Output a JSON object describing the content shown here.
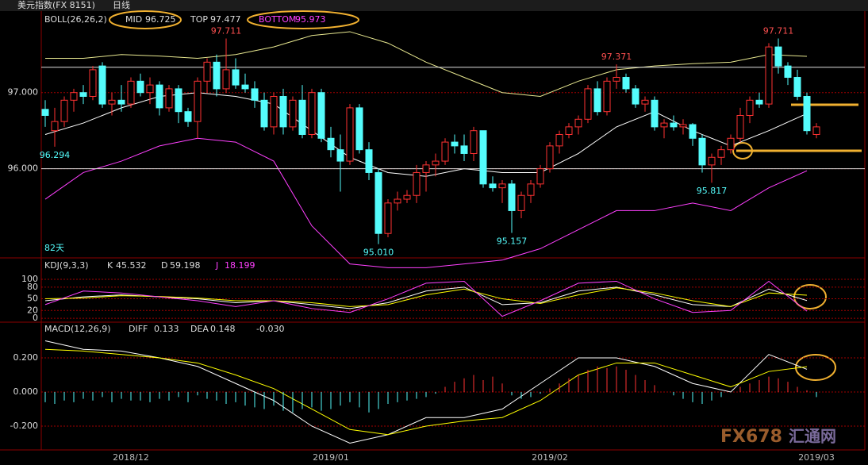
{
  "header": {
    "title": "美元指数(FX 8151)",
    "period": "日线",
    "span": "82天",
    "watermark": "FX678",
    "watermark_cn": "汇通网"
  },
  "chart_data": [
    {
      "type": "candlestick",
      "name": "BOLL(26,26,2)",
      "categories": [
        null,
        null,
        null,
        null,
        null,
        null,
        null,
        null,
        null,
        "2018/12",
        null,
        null,
        null,
        null,
        null,
        null,
        null,
        null,
        null,
        null,
        null,
        null,
        null,
        null,
        null,
        null,
        null,
        null,
        null,
        null,
        "2019/01",
        null,
        null,
        null,
        null,
        null,
        null,
        null,
        null,
        null,
        null,
        null,
        null,
        null,
        null,
        null,
        null,
        null,
        null,
        null,
        null,
        null,
        null,
        "2019/02",
        null,
        null,
        null,
        null,
        null,
        null,
        null,
        null,
        null,
        null,
        null,
        null,
        null,
        null,
        null,
        null,
        null,
        null,
        null,
        null,
        null,
        null,
        null,
        null,
        null,
        null,
        null,
        "2019/03"
      ],
      "open": [
        96.78,
        96.5,
        96.62,
        96.9,
        97,
        96.95,
        97.35,
        96.85,
        96.9,
        96.85,
        97.15,
        97,
        97.1,
        96.8,
        97.05,
        96.75,
        96.62,
        97.15,
        97.4,
        97.05,
        97.3,
        97.1,
        97.05,
        96.9,
        96.55,
        96.95,
        96.55,
        96.9,
        96.45,
        97,
        96.4,
        96.25,
        96.1,
        96.8,
        96.25,
        95.95,
        95.15,
        95.55,
        95.6,
        95.65,
        95.95,
        96.05,
        96.1,
        96.35,
        96.3,
        96.2,
        96.5,
        95.8,
        95.75,
        95.8,
        95.45,
        95.65,
        95.8,
        96,
        96.3,
        96.45,
        96.55,
        96.65,
        97.05,
        96.75,
        97.15,
        97.2,
        97.05,
        96.85,
        96.9,
        96.55,
        96.6,
        96.55,
        96.58,
        96.4,
        96.05,
        96.15,
        96.25,
        96.4,
        96.7,
        96.9,
        96.85,
        97.6,
        97.35,
        97.2,
        96.95,
        96.45
      ],
      "high": [
        96.9,
        96.8,
        96.95,
        97.05,
        97.1,
        97.35,
        97.4,
        97,
        97.1,
        97.2,
        97.25,
        97.2,
        97.15,
        97.1,
        97.1,
        96.8,
        97.2,
        97.45,
        97.5,
        97.711,
        97.45,
        97.25,
        97.15,
        97,
        97,
        97.05,
        96.95,
        97.1,
        97.05,
        97.05,
        96.55,
        96.45,
        96.85,
        96.85,
        96.35,
        96,
        95.6,
        95.7,
        95.72,
        96.05,
        96.1,
        96.2,
        96.4,
        96.45,
        96.45,
        96.55,
        96.5,
        95.9,
        95.85,
        95.85,
        95.7,
        95.85,
        96.05,
        96.35,
        96.5,
        96.6,
        96.7,
        97.1,
        97.15,
        97.2,
        97.371,
        97.25,
        97.1,
        96.95,
        96.95,
        96.65,
        96.7,
        96.65,
        96.6,
        96.45,
        96.2,
        96.3,
        96.45,
        96.8,
        96.95,
        97,
        97.65,
        97.711,
        97.4,
        97.3,
        97,
        96.6
      ],
      "low": [
        96.55,
        96.29,
        96.55,
        96.75,
        96.85,
        96.9,
        96.8,
        96.7,
        96.75,
        96.8,
        96.95,
        96.85,
        96.7,
        96.75,
        96.6,
        96.55,
        96.4,
        97,
        96.95,
        97,
        97.05,
        97,
        96.8,
        96.5,
        96.45,
        96.45,
        96.5,
        96.4,
        96.4,
        96.35,
        96.15,
        95.7,
        96.05,
        96.2,
        95.85,
        95.01,
        95.1,
        95.45,
        95.55,
        95.55,
        95.7,
        95.9,
        96.05,
        96.2,
        96.1,
        96.1,
        95.75,
        95.7,
        95.55,
        95.157,
        95.35,
        95.55,
        95.75,
        95.95,
        96.2,
        96.4,
        96.45,
        96.6,
        96.7,
        96.7,
        97.05,
        97,
        96.8,
        96.75,
        96.5,
        96.4,
        96.5,
        96.45,
        96.3,
        95.95,
        95.817,
        96.05,
        96.2,
        96.35,
        96.6,
        96.8,
        96.8,
        97.25,
        97.1,
        96.9,
        96.45,
        96.4
      ],
      "close": [
        96.7,
        96.62,
        96.9,
        97,
        96.95,
        97.3,
        96.85,
        96.9,
        96.85,
        97.15,
        97,
        97.1,
        96.8,
        97.05,
        96.75,
        96.62,
        97.15,
        97.4,
        97.05,
        97.3,
        97.1,
        97.05,
        96.9,
        96.55,
        96.95,
        96.55,
        96.9,
        96.45,
        97,
        96.4,
        96.25,
        96.1,
        96.8,
        96.25,
        95.95,
        95.15,
        95.55,
        95.6,
        95.65,
        95.95,
        96.05,
        96.1,
        96.35,
        96.3,
        96.2,
        96.5,
        95.8,
        95.75,
        95.8,
        95.45,
        95.65,
        95.8,
        96,
        96.3,
        96.45,
        96.55,
        96.65,
        97.05,
        96.75,
        97.15,
        97.2,
        97.05,
        96.85,
        96.9,
        96.55,
        96.6,
        96.55,
        96.58,
        96.4,
        96.05,
        96.15,
        96.25,
        96.4,
        96.7,
        96.9,
        96.85,
        97.6,
        97.35,
        97.2,
        96.95,
        96.5,
        96.55
      ],
      "up_color": "#ff3232",
      "down_color": "#54fcfc",
      "x": [
        0,
        4,
        8,
        12,
        16,
        20,
        24,
        28,
        32,
        36,
        40,
        44,
        48,
        52,
        56,
        60,
        64,
        68,
        72,
        76,
        80
      ],
      "series": [
        {
          "name": "MID",
          "color": "#ffffff",
          "values": [
            96.45,
            96.6,
            96.8,
            96.95,
            97,
            96.95,
            96.85,
            96.5,
            96.15,
            95.95,
            95.9,
            96,
            95.95,
            95.95,
            96.2,
            96.55,
            96.75,
            96.5,
            96.3,
            96.5,
            96.725
          ]
        },
        {
          "name": "TOP",
          "color": "#e8e890",
          "values": [
            97.45,
            97.45,
            97.5,
            97.48,
            97.45,
            97.5,
            97.6,
            97.75,
            97.8,
            97.65,
            97.4,
            97.2,
            97,
            96.95,
            97.15,
            97.3,
            97.35,
            97.38,
            97.4,
            97.5,
            97.477
          ]
        },
        {
          "name": "BOTTOM",
          "color": "#ff40ff",
          "values": [
            95.6,
            95.95,
            96.1,
            96.3,
            96.4,
            96.35,
            96.1,
            95.25,
            94.75,
            94.7,
            94.7,
            94.75,
            94.8,
            94.95,
            95.2,
            95.45,
            95.45,
            95.55,
            95.45,
            95.75,
            95.973
          ]
        }
      ],
      "annotations": [
        {
          "text": "97.711",
          "x": 19,
          "y": 97.711
        },
        {
          "text": "96.294",
          "x": 1,
          "y": 96.29
        },
        {
          "text": "95.010",
          "x": 35,
          "y": 95.01
        },
        {
          "text": "95.157",
          "x": 49,
          "y": 95.157
        },
        {
          "text": "97.371",
          "x": 60,
          "y": 97.371
        },
        {
          "text": "95.817",
          "x": 70,
          "y": 95.817
        },
        {
          "text": "97.711",
          "x": 77,
          "y": 97.711
        }
      ],
      "hlines": [
        97.333,
        96
      ],
      "ylim": [
        94.85,
        98.06
      ],
      "yticks": [
        {
          "value": 97,
          "label": "97.000"
        },
        {
          "value": 96,
          "label": "96.000"
        }
      ],
      "grid": true
    },
    {
      "type": "line",
      "name": "KDJ(9,3,3)",
      "x": [
        0,
        4,
        8,
        12,
        16,
        20,
        24,
        28,
        32,
        36,
        40,
        44,
        48,
        52,
        56,
        60,
        64,
        68,
        72,
        76,
        80
      ],
      "series": [
        {
          "name": "K",
          "color": "#ffffff",
          "values": [
            45,
            55,
            60,
            55,
            50,
            40,
            45,
            35,
            25,
            40,
            70,
            80,
            35,
            40,
            70,
            80,
            60,
            35,
            30,
            75,
            45.532
          ]
        },
        {
          "name": "D",
          "color": "#ffff00",
          "values": [
            50,
            52,
            58,
            56,
            52,
            45,
            45,
            40,
            30,
            35,
            60,
            75,
            50,
            38,
            60,
            78,
            65,
            45,
            30,
            65,
            59.198
          ]
        },
        {
          "name": "J",
          "color": "#ff40ff",
          "values": [
            35,
            70,
            65,
            55,
            45,
            30,
            45,
            25,
            15,
            50,
            90,
            95,
            5,
            45,
            90,
            95,
            50,
            15,
            20,
            95,
            18.199
          ]
        }
      ],
      "ylim": [
        -8,
        151
      ],
      "yticks": [
        100,
        80,
        50,
        20,
        0
      ],
      "grid": true
    },
    {
      "type": "macd",
      "name": "MACD(12,26,9)",
      "x": [
        0,
        4,
        8,
        12,
        16,
        20,
        24,
        28,
        32,
        36,
        40,
        44,
        48,
        52,
        56,
        60,
        64,
        68,
        72,
        76,
        80
      ],
      "series": [
        {
          "name": "DIFF",
          "color": "#ffffff",
          "values": [
            0.3,
            0.25,
            0.24,
            0.2,
            0.15,
            0.05,
            -0.05,
            -0.2,
            -0.3,
            -0.25,
            -0.15,
            -0.15,
            -0.1,
            0.05,
            0.2,
            0.2,
            0.15,
            0.05,
            0,
            0.22,
            0.133
          ]
        },
        {
          "name": "DEA",
          "color": "#ffff00",
          "values": [
            0.25,
            0.24,
            0.22,
            0.2,
            0.17,
            0.1,
            0.02,
            -0.1,
            -0.22,
            -0.25,
            -0.2,
            -0.17,
            -0.15,
            -0.05,
            0.1,
            0.17,
            0.17,
            0.1,
            0.03,
            0.12,
            0.148
          ]
        }
      ],
      "histogram": {
        "current": {
          "value": -0.03,
          "label": "-0.030"
        },
        "up_color": "#ff3232",
        "down_color": "#54fcfc",
        "values": [
          -0.06,
          -0.07,
          -0.05,
          -0.06,
          -0.04,
          -0.05,
          -0.03,
          -0.06,
          -0.04,
          -0.05,
          -0.05,
          -0.06,
          -0.04,
          -0.05,
          -0.03,
          -0.06,
          -0.02,
          -0.04,
          -0.05,
          -0.07,
          -0.06,
          -0.08,
          -0.09,
          -0.1,
          -0.08,
          -0.11,
          -0.12,
          -0.1,
          -0.09,
          -0.11,
          -0.1,
          -0.08,
          -0.06,
          -0.09,
          -0.12,
          -0.1,
          -0.07,
          -0.06,
          -0.05,
          -0.04,
          -0.03,
          -0.01,
          0.03,
          0.06,
          0.08,
          0.1,
          0.07,
          0.09,
          0.05,
          -0.02,
          -0.04,
          -0.03,
          -0.01,
          0.02,
          0.05,
          0.08,
          0.1,
          0.13,
          0.15,
          0.14,
          0.15,
          0.13,
          0.1,
          0.07,
          0.04,
          0,
          -0.02,
          -0.04,
          -0.06,
          -0.07,
          -0.05,
          -0.03,
          0,
          0.03,
          0.05,
          0.07,
          0.09,
          0.08,
          0.06,
          0.03,
          0.01,
          -0.03
        ]
      },
      "ylim": [
        -0.335,
        0.4
      ],
      "yticks": [
        {
          "value": 0.2,
          "label": "0.200"
        },
        {
          "value": 0,
          "label": "0.000"
        },
        {
          "value": -0.2,
          "label": "-0.200"
        }
      ],
      "grid": true
    }
  ]
}
